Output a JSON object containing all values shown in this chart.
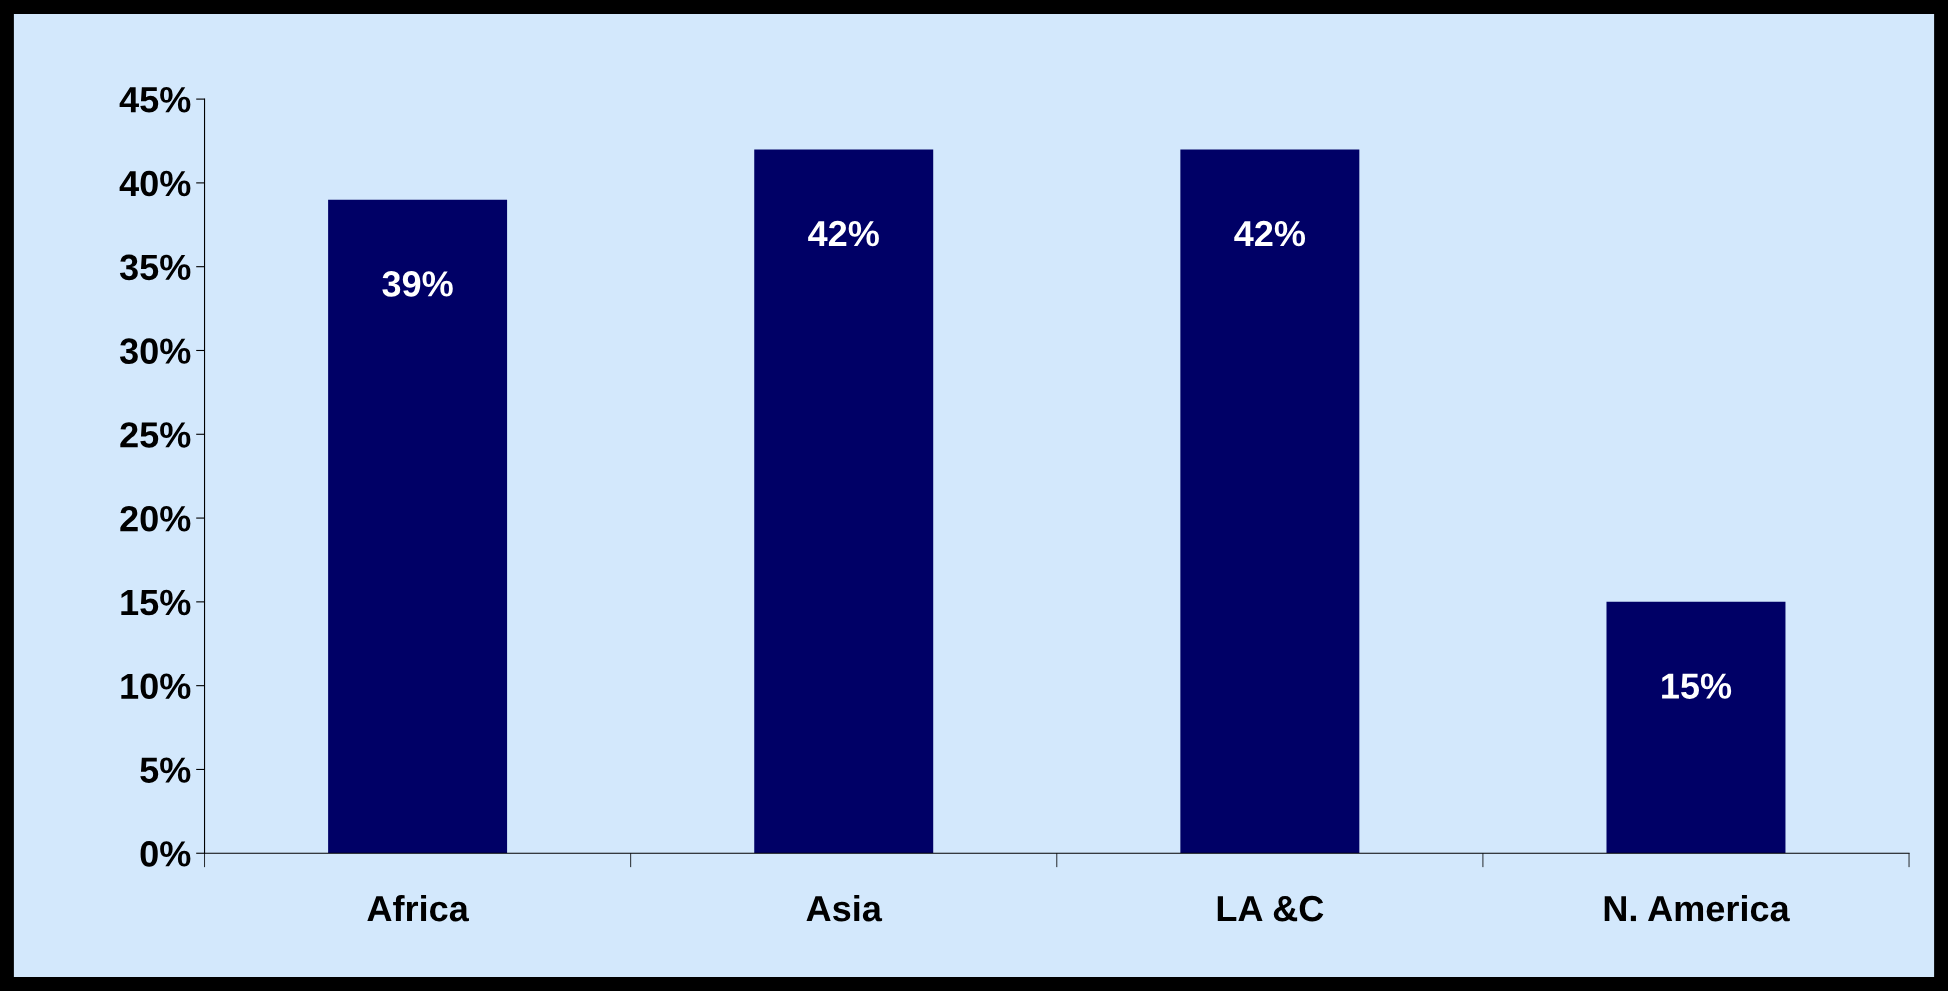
{
  "chart_data": {
    "type": "bar",
    "categories": [
      "Africa",
      "Asia",
      "LA &C",
      "N. America"
    ],
    "values": [
      39,
      42,
      42,
      15
    ],
    "value_labels": [
      "39%",
      "42%",
      "42%",
      "15%"
    ],
    "color": "#000066",
    "ylim": [
      0,
      45
    ],
    "yticks": [
      {
        "value": 0,
        "label": "0%"
      },
      {
        "value": 5,
        "label": "5%"
      },
      {
        "value": 10,
        "label": "10%"
      },
      {
        "value": 15,
        "label": "15%"
      },
      {
        "value": 20,
        "label": "20%"
      },
      {
        "value": 25,
        "label": "25%"
      },
      {
        "value": 30,
        "label": "30%"
      },
      {
        "value": 35,
        "label": "35%"
      },
      {
        "value": 40,
        "label": "40%"
      },
      {
        "value": 45,
        "label": "45%"
      }
    ],
    "grid": false,
    "legend": false
  }
}
